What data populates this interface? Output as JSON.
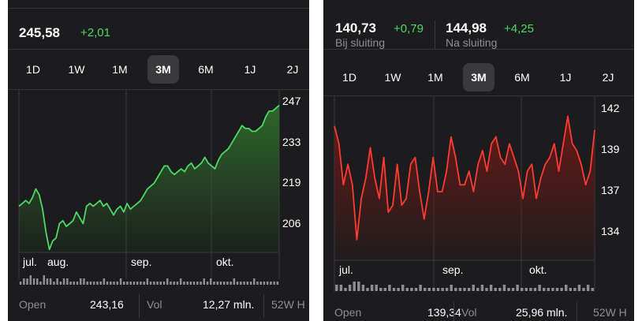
{
  "left": {
    "price": "245,58",
    "change": "+2,01",
    "ranges": [
      "1D",
      "1W",
      "1M",
      "3M",
      "6M",
      "1J",
      "2J"
    ],
    "selected_range": "3M",
    "colors": {
      "line": "#4cd964",
      "fill": "#2e6b2a"
    },
    "chart_data": {
      "type": "area",
      "y_ticks": [
        "247",
        "233",
        "219",
        "206"
      ],
      "x_ticks": [
        "jul.",
        "aug.",
        "sep.",
        "okt."
      ],
      "ylim": [
        197,
        252
      ],
      "values": [
        213,
        214,
        215,
        214,
        216,
        219,
        217,
        212,
        204,
        198,
        201,
        202,
        207,
        208,
        206,
        207,
        208,
        211,
        209,
        207,
        213,
        214,
        213,
        214,
        215,
        213,
        214,
        212,
        210,
        212,
        213,
        211,
        214,
        212,
        213,
        214,
        215,
        217,
        219,
        220,
        221,
        223,
        225,
        227,
        227,
        225,
        224,
        225,
        226,
        225,
        227,
        228,
        226,
        227,
        228,
        230,
        228,
        227,
        226,
        229,
        231,
        232,
        233,
        235,
        237,
        239,
        241,
        240,
        240,
        239,
        239,
        240,
        241,
        244,
        246,
        246,
        247,
        248
      ],
      "volume": [
        1,
        2,
        2,
        3,
        2,
        2,
        1,
        3,
        2,
        2,
        1,
        2,
        1,
        2,
        2,
        1,
        1,
        1,
        2,
        2,
        1,
        1,
        1,
        1,
        1,
        2,
        1,
        1,
        1,
        1,
        2,
        1,
        1,
        1,
        1,
        1,
        1,
        1,
        2,
        1,
        1,
        1,
        1,
        1,
        2,
        1,
        1,
        1,
        2,
        1,
        1,
        1,
        1,
        1,
        1,
        2,
        1,
        2,
        1,
        1,
        1,
        1,
        1,
        1,
        2,
        1,
        1,
        1,
        1,
        1,
        2,
        1,
        1,
        1,
        1,
        1,
        1,
        1
      ]
    },
    "stats": [
      {
        "label": "Open",
        "value": "243,16"
      },
      {
        "label": "Vol",
        "value": "12,27 mln."
      },
      {
        "label": "52W H",
        "value": ""
      }
    ]
  },
  "right": {
    "price": "140,73",
    "change": "+0,79",
    "sub": "Bij sluiting",
    "price2": "144,98",
    "change2": "+4,25",
    "sub2": "Na sluiting",
    "ranges": [
      "1D",
      "1W",
      "1M",
      "3M",
      "6M",
      "1J",
      "2J"
    ],
    "selected_range": "3M",
    "colors": {
      "line": "#ff3b30",
      "fill": "#6b1a16"
    },
    "chart_data": {
      "type": "area",
      "y_ticks": [
        "142",
        "139",
        "137",
        "134"
      ],
      "x_ticks": [
        "jul.",
        "sep.",
        "okt."
      ],
      "ylim": [
        132,
        143.5
      ],
      "values": [
        141.8,
        140.5,
        137.5,
        139,
        137.5,
        133.5,
        136.5,
        138,
        140.2,
        138,
        136.5,
        139.5,
        135.5,
        136,
        139,
        136,
        136.5,
        139,
        139.5,
        137,
        135,
        137,
        139.5,
        137,
        137,
        138.5,
        141,
        139.5,
        137.5,
        137.5,
        138.5,
        137,
        139,
        140,
        138.5,
        140.5,
        141,
        139.5,
        139,
        140.5,
        139.5,
        138.5,
        136.5,
        138.5,
        139,
        136.5,
        138,
        139,
        139.5,
        140.5,
        138.5,
        140.5,
        142.5,
        140.5,
        140,
        139,
        137.5,
        138.5,
        141.5
      ],
      "volume": [
        2,
        2,
        1,
        2,
        3,
        3,
        2,
        1,
        2,
        2,
        1,
        1,
        2,
        1,
        1,
        2,
        1,
        1,
        1,
        2,
        1,
        1,
        1,
        1,
        1,
        1,
        2,
        1,
        1,
        1,
        1,
        2,
        1,
        2,
        1,
        2,
        1,
        1,
        2,
        1,
        1,
        2,
        1,
        1,
        1,
        1,
        2,
        1,
        1,
        1,
        1,
        1,
        2,
        1,
        1,
        2,
        1,
        2,
        1
      ]
    },
    "stats": [
      {
        "label": "Open",
        "value": "139,34"
      },
      {
        "label": "Vol",
        "value": "25,96 mln."
      },
      {
        "label": "52W H",
        "value": ""
      }
    ]
  }
}
